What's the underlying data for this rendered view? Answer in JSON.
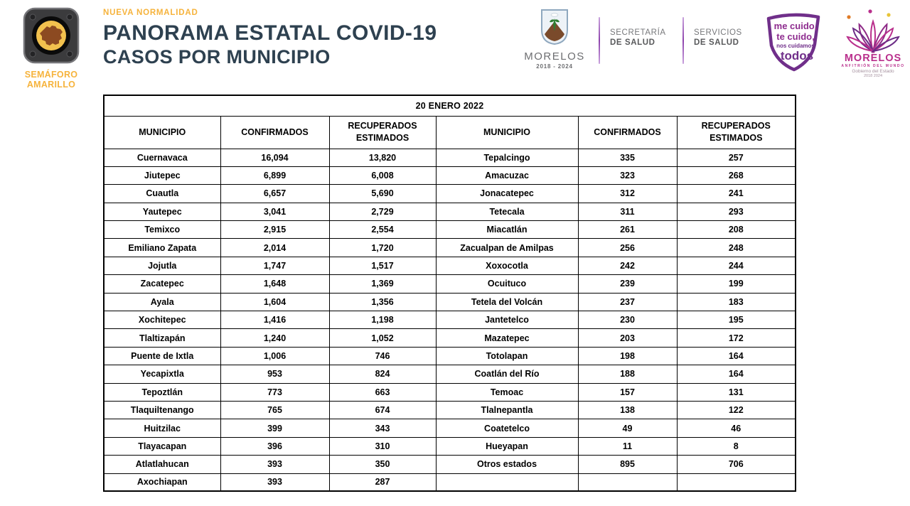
{
  "colors": {
    "accent_yellow": "#F6B33C",
    "title_dark": "#2E4150",
    "table_border": "#000000",
    "muted_gray": "#A8A8A8",
    "shield_purple": "#702F8A",
    "brand_magenta": "#B92F8C",
    "logo_gray": "#6D6E71"
  },
  "semaforo": {
    "line1": "SEMÁFORO",
    "line2": "AMARILLO"
  },
  "header": {
    "eyebrow": "NUEVA NORMALIDAD",
    "title_line1": "PANORAMA ESTATAL COVID-19",
    "title_line2": "CASOS POR MUNICIPIO"
  },
  "logos": {
    "morelos_gov": {
      "name": "MORELOS",
      "years": "2018 - 2024"
    },
    "secretaria": {
      "line1": "SECRETARÍA",
      "line2": "DE SALUD"
    },
    "servicios": {
      "line1": "SERVICIOS",
      "line2": "DE SALUD"
    },
    "shield": {
      "line1": "me cuido,",
      "line2": "te cuido,",
      "line3": "nos cuidamos",
      "line4": "todos"
    },
    "brand": {
      "name": "MORELOS",
      "tagline": "ANFITRIÓN DEL MUNDO",
      "sub1": "Gobierno del Estado",
      "sub2": "2018  2024"
    }
  },
  "table": {
    "date_header": "20 ENERO 2022",
    "columns": [
      "MUNICIPIO",
      "CONFIRMADOS",
      "RECUPERADOS ESTIMADOS",
      "MUNICIPIO",
      "CONFIRMADOS",
      "RECUPERADOS ESTIMADOS"
    ],
    "rows": [
      {
        "left": {
          "municipio": "Cuernavaca",
          "confirmados": "16,094",
          "recuperados": "13,820"
        },
        "right": {
          "municipio": "Tepalcingo",
          "confirmados": "335",
          "recuperados": "257"
        }
      },
      {
        "left": {
          "municipio": "Jiutepec",
          "confirmados": "6,899",
          "recuperados": "6,008"
        },
        "right": {
          "municipio": "Amacuzac",
          "confirmados": "323",
          "recuperados": "268"
        }
      },
      {
        "left": {
          "municipio": "Cuautla",
          "confirmados": "6,657",
          "recuperados": "5,690"
        },
        "right": {
          "municipio": "Jonacatepec",
          "confirmados": "312",
          "recuperados": "241"
        }
      },
      {
        "left": {
          "municipio": "Yautepec",
          "confirmados": "3,041",
          "recuperados": "2,729"
        },
        "right": {
          "municipio": "Tetecala",
          "confirmados": "311",
          "recuperados": "293"
        }
      },
      {
        "left": {
          "municipio": "Temixco",
          "confirmados": "2,915",
          "recuperados": "2,554"
        },
        "right": {
          "municipio": "Miacatlán",
          "confirmados": "261",
          "recuperados": "208"
        }
      },
      {
        "left": {
          "municipio": "Emiliano Zapata",
          "confirmados": "2,014",
          "recuperados": "1,720"
        },
        "right": {
          "municipio": "Zacualpan de Amilpas",
          "confirmados": "256",
          "recuperados": "248"
        }
      },
      {
        "left": {
          "municipio": "Jojutla",
          "confirmados": "1,747",
          "recuperados": "1,517"
        },
        "right": {
          "municipio": "Xoxocotla",
          "confirmados": "242",
          "recuperados": "244"
        }
      },
      {
        "left": {
          "municipio": "Zacatepec",
          "confirmados": "1,648",
          "recuperados": "1,369"
        },
        "right": {
          "municipio": "Ocuituco",
          "confirmados": "239",
          "recuperados": "199"
        }
      },
      {
        "left": {
          "municipio": "Ayala",
          "confirmados": "1,604",
          "recuperados": "1,356"
        },
        "right": {
          "municipio": "Tetela del Volcán",
          "confirmados": "237",
          "recuperados": "183"
        }
      },
      {
        "left": {
          "municipio": "Xochitepec",
          "confirmados": "1,416",
          "recuperados": "1,198"
        },
        "right": {
          "municipio": "Jantetelco",
          "confirmados": "230",
          "recuperados": "195"
        }
      },
      {
        "left": {
          "municipio": "Tlaltizapán",
          "confirmados": "1,240",
          "recuperados": "1,052"
        },
        "right": {
          "municipio": "Mazatepec",
          "confirmados": "203",
          "recuperados": "172"
        }
      },
      {
        "left": {
          "municipio": "Puente de Ixtla",
          "confirmados": "1,006",
          "recuperados": "746"
        },
        "right": {
          "municipio": "Totolapan",
          "confirmados": "198",
          "recuperados": "164"
        }
      },
      {
        "left": {
          "municipio": "Yecapixtla",
          "confirmados": "953",
          "recuperados": "824"
        },
        "right": {
          "municipio": "Coatlán del Río",
          "confirmados": "188",
          "recuperados": "164"
        }
      },
      {
        "left": {
          "municipio": "Tepoztlán",
          "confirmados": "773",
          "recuperados": "663"
        },
        "right": {
          "municipio": "Temoac",
          "confirmados": "157",
          "recuperados": "131"
        }
      },
      {
        "left": {
          "municipio": "Tlaquiltenango",
          "confirmados": "765",
          "recuperados": "674"
        },
        "right": {
          "municipio": "Tlalnepantla",
          "confirmados": "138",
          "recuperados": "122"
        }
      },
      {
        "left": {
          "municipio": "Huitzilac",
          "confirmados": "399",
          "recuperados": "343"
        },
        "right": {
          "municipio": "Coatetelco",
          "confirmados": "49",
          "recuperados": "46"
        }
      },
      {
        "left": {
          "municipio": "Tlayacapan",
          "confirmados": "396",
          "recuperados": "310"
        },
        "right": {
          "municipio": "Hueyapan",
          "confirmados": "11",
          "recuperados": "8"
        }
      },
      {
        "left": {
          "municipio": "Atlatlahucan",
          "confirmados": "393",
          "recuperados": "350"
        },
        "right": {
          "municipio": "Otros estados",
          "confirmados": "895",
          "recuperados": "706",
          "muted": true
        }
      },
      {
        "left": {
          "municipio": "Axochiapan",
          "confirmados": "393",
          "recuperados": "287"
        },
        "right": {
          "municipio": "",
          "confirmados": "",
          "recuperados": ""
        }
      }
    ]
  }
}
